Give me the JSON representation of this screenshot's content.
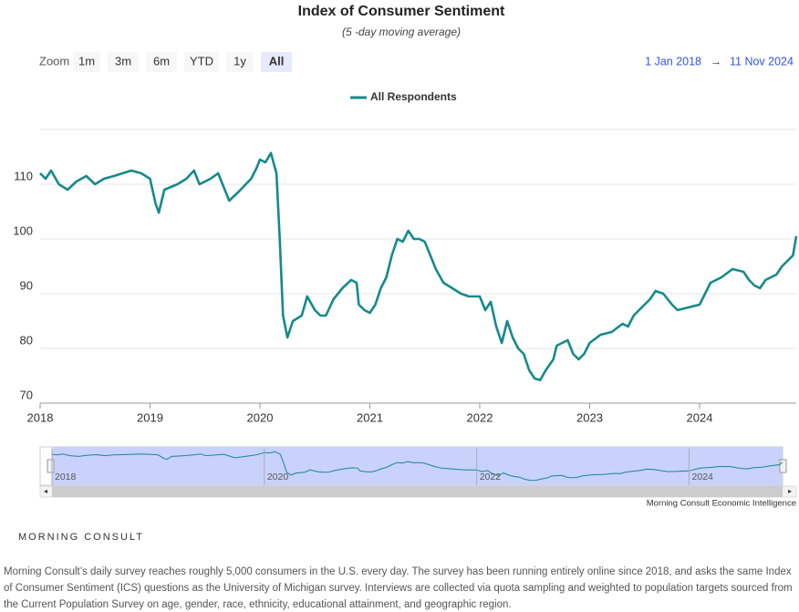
{
  "chart_data": {
    "type": "line",
    "title": "Index of Consumer Sentiment",
    "subtitle": "(5 -day moving average)",
    "x": [
      2018.0,
      2018.05,
      2018.1,
      2018.17,
      2018.25,
      2018.33,
      2018.42,
      2018.5,
      2018.58,
      2018.67,
      2018.75,
      2018.83,
      2018.92,
      2019.0,
      2019.05,
      2019.08,
      2019.13,
      2019.25,
      2019.33,
      2019.4,
      2019.45,
      2019.55,
      2019.62,
      2019.67,
      2019.72,
      2019.8,
      2019.92,
      2019.97,
      2020.0,
      2020.05,
      2020.1,
      2020.15,
      2020.18,
      2020.21,
      2020.25,
      2020.3,
      2020.38,
      2020.43,
      2020.5,
      2020.55,
      2020.6,
      2020.67,
      2020.75,
      2020.83,
      2020.88,
      2020.9,
      2020.95,
      2021.0,
      2021.05,
      2021.1,
      2021.15,
      2021.2,
      2021.25,
      2021.3,
      2021.35,
      2021.4,
      2021.45,
      2021.5,
      2021.55,
      2021.6,
      2021.67,
      2021.75,
      2021.83,
      2021.9,
      2022.0,
      2022.05,
      2022.1,
      2022.15,
      2022.2,
      2022.25,
      2022.3,
      2022.35,
      2022.4,
      2022.45,
      2022.5,
      2022.55,
      2022.6,
      2022.67,
      2022.7,
      2022.75,
      2022.8,
      2022.85,
      2022.9,
      2022.95,
      2023.0,
      2023.1,
      2023.2,
      2023.3,
      2023.35,
      2023.4,
      2023.5,
      2023.55,
      2023.6,
      2023.67,
      2023.75,
      2023.8,
      2023.9,
      2024.0,
      2024.05,
      2024.1,
      2024.2,
      2024.3,
      2024.4,
      2024.45,
      2024.5,
      2024.55,
      2024.6,
      2024.7,
      2024.75,
      2024.8,
      2024.85,
      2024.88
    ],
    "series": [
      {
        "name": "All Respondents",
        "color": "#168a8a",
        "values": [
          112,
          111,
          112.5,
          110,
          109,
          110.5,
          111.5,
          110,
          111,
          111.5,
          112,
          112.5,
          112,
          111,
          106.5,
          104.8,
          109,
          110,
          111,
          112.5,
          110,
          111,
          112,
          109.5,
          107,
          108.5,
          111,
          113,
          114.5,
          114,
          115.7,
          112,
          100,
          86,
          82,
          85,
          86,
          89.5,
          87,
          86,
          86,
          89,
          91,
          92.5,
          92,
          88,
          87,
          86.5,
          88,
          91,
          93,
          97,
          100,
          99.5,
          101.5,
          100,
          100,
          99.5,
          97,
          94.5,
          92,
          91,
          90,
          89.5,
          89.5,
          87,
          88.5,
          84,
          81,
          85,
          82,
          80,
          79,
          76,
          74.5,
          74.2,
          76,
          78,
          80.5,
          81,
          81.5,
          79,
          78,
          79,
          81,
          82.5,
          83,
          84.5,
          84,
          86,
          88,
          89,
          90.5,
          90,
          88,
          87,
          87.5,
          88,
          90,
          92,
          93,
          94.5,
          94,
          92.5,
          91.5,
          91,
          92.5,
          93.5,
          95,
          96,
          97,
          100.5
        ]
      }
    ],
    "xlim": [
      2018,
      2024.88
    ],
    "xticks": [
      2018,
      2019,
      2020,
      2021,
      2022,
      2023,
      2024
    ],
    "ylim": [
      70,
      120
    ],
    "yticks": [
      70,
      80,
      90,
      100,
      110
    ],
    "grid": true,
    "legend": "top",
    "navigator": {
      "labels": [
        2018,
        2020,
        2022,
        2024
      ]
    },
    "credit": "Morning Consult Economic Intelligence"
  },
  "zoom": {
    "label": "Zoom",
    "buttons": [
      "1m",
      "3m",
      "6m",
      "YTD",
      "1y",
      "All"
    ],
    "selected": 5
  },
  "range": {
    "from": "1 Jan 2018",
    "arrow": "→",
    "to": "11 Nov 2024"
  },
  "brand": "MORNING CONSULT",
  "footnote": "Morning Consult’s daily survey reaches roughly 5,000 consumers in the U.S. every day. The survey has been running entirely online since 2018, and asks the same Index of Consumer Sentiment (ICS) questions as the University of Michigan survey. Interviews are collected via quota sampling and weighted to population targets sourced from the Current Population Survey on age, gender, race, ethnicity, educational attainment, and geographic region."
}
